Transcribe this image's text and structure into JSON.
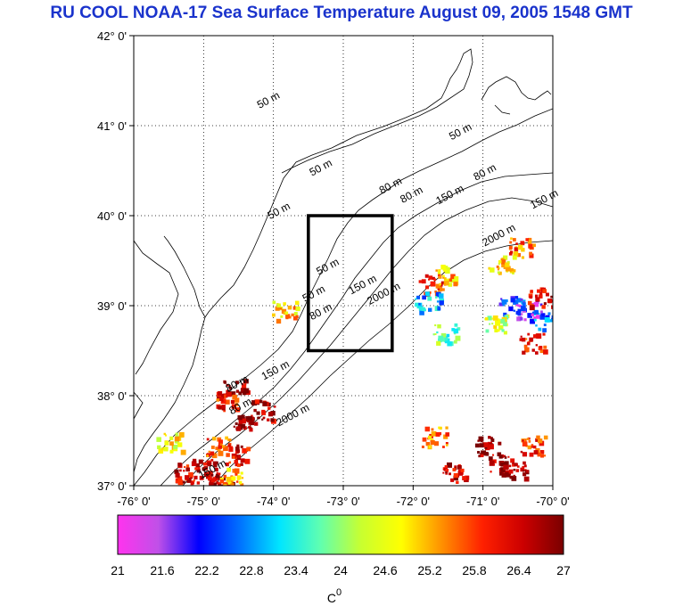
{
  "title": "RU COOL  NOAA-17 Sea Surface Temperature August 09, 2005 1548 GMT",
  "map": {
    "lon_ticks": [
      "-76° 0'",
      "-75° 0'",
      "-74° 0'",
      "-73° 0'",
      "-72° 0'",
      "-71° 0'",
      "-70° 0'"
    ],
    "lat_ticks": [
      "42° 0'",
      "41° 0'",
      "40° 0'",
      "39° 0'",
      "38° 0'",
      "37° 0'"
    ],
    "lon_range": [
      -76,
      -70
    ],
    "lat_range": [
      37,
      42
    ],
    "study_box": {
      "lon": [
        -73.5,
        -72.3
      ],
      "lat": [
        38.5,
        40.0
      ]
    },
    "contour_labels": [
      {
        "text": "50 m",
        "lon": -74.05,
        "lat": 41.25
      },
      {
        "text": "50 m",
        "lon": -73.3,
        "lat": 40.5
      },
      {
        "text": "50 m",
        "lon": -71.3,
        "lat": 40.9
      },
      {
        "text": "50 m",
        "lon": -73.9,
        "lat": 40.02
      },
      {
        "text": "80 m",
        "lon": -72.3,
        "lat": 40.3
      },
      {
        "text": "80 m",
        "lon": -72.0,
        "lat": 40.2
      },
      {
        "text": "80 m",
        "lon": -70.95,
        "lat": 40.45
      },
      {
        "text": "150 m",
        "lon": -71.45,
        "lat": 40.2
      },
      {
        "text": "150 m",
        "lon": -70.1,
        "lat": 40.15
      },
      {
        "text": "2000 m",
        "lon": -70.75,
        "lat": 39.75
      },
      {
        "text": "2000 m",
        "lon": -72.4,
        "lat": 39.1
      },
      {
        "text": "150 m",
        "lon": -72.7,
        "lat": 39.2
      },
      {
        "text": "80 m",
        "lon": -73.3,
        "lat": 38.9
      },
      {
        "text": "50 m",
        "lon": -73.4,
        "lat": 39.1
      },
      {
        "text": "50 m",
        "lon": -73.2,
        "lat": 39.4
      },
      {
        "text": "150 m",
        "lon": -73.95,
        "lat": 38.25
      },
      {
        "text": "80 m",
        "lon": -74.5,
        "lat": 38.1
      },
      {
        "text": "80 m",
        "lon": -74.45,
        "lat": 37.85
      },
      {
        "text": "2000 m",
        "lon": -73.7,
        "lat": 37.75
      },
      {
        "text": "150 m",
        "lon": -74.85,
        "lat": 37.15
      }
    ]
  },
  "colorbar": {
    "tick_labels": [
      "21",
      "21.6",
      "22.2",
      "22.8",
      "23.4",
      "24",
      "24.6",
      "25.2",
      "25.8",
      "26.4",
      "27"
    ],
    "range": [
      21,
      27
    ],
    "unit_label": "C",
    "unit_sup": "0",
    "stops": [
      "#ff33ee",
      "#c050e8",
      "#0000ff",
      "#0070ff",
      "#00e6ff",
      "#60ffb0",
      "#c8ff30",
      "#ffff00",
      "#ff9000",
      "#ff2000",
      "#cc0000",
      "#7a0000"
    ]
  },
  "sst_patches": [
    {
      "lon": -70.95,
      "lat": 37.45,
      "temp": 26.9
    },
    {
      "lon": -70.75,
      "lat": 37.25,
      "temp": 26.7
    },
    {
      "lon": -70.55,
      "lat": 37.2,
      "temp": 26.8
    },
    {
      "lon": -71.4,
      "lat": 37.15,
      "temp": 26.5
    },
    {
      "lon": -71.7,
      "lat": 37.55,
      "temp": 25.5
    },
    {
      "lon": -70.3,
      "lat": 37.45,
      "temp": 25.9
    },
    {
      "lon": -71.75,
      "lat": 39.25,
      "temp": 26.0
    },
    {
      "lon": -71.55,
      "lat": 39.35,
      "temp": 25.1
    },
    {
      "lon": -71.8,
      "lat": 39.05,
      "temp": 23.0
    },
    {
      "lon": -70.6,
      "lat": 39.0,
      "temp": 22.3
    },
    {
      "lon": -70.35,
      "lat": 38.95,
      "temp": 21.8
    },
    {
      "lon": -70.1,
      "lat": 38.85,
      "temp": 22.7
    },
    {
      "lon": -70.2,
      "lat": 39.1,
      "temp": 26.3
    },
    {
      "lon": -70.85,
      "lat": 38.8,
      "temp": 24.4
    },
    {
      "lon": -71.55,
      "lat": 38.7,
      "temp": 23.8
    },
    {
      "lon": -70.3,
      "lat": 38.6,
      "temp": 26.0
    },
    {
      "lon": -70.45,
      "lat": 39.65,
      "temp": 25.6
    },
    {
      "lon": -70.75,
      "lat": 39.45,
      "temp": 24.9
    },
    {
      "lon": -74.15,
      "lat": 37.85,
      "temp": 26.6
    },
    {
      "lon": -74.4,
      "lat": 37.75,
      "temp": 26.9
    },
    {
      "lon": -74.55,
      "lat": 37.35,
      "temp": 26.2
    },
    {
      "lon": -75.0,
      "lat": 37.2,
      "temp": 26.6
    },
    {
      "lon": -75.25,
      "lat": 37.15,
      "temp": 26.3
    },
    {
      "lon": -74.75,
      "lat": 37.05,
      "temp": 26.8
    },
    {
      "lon": -74.6,
      "lat": 37.1,
      "temp": 25.2
    },
    {
      "lon": -75.5,
      "lat": 37.5,
      "temp": 24.7
    },
    {
      "lon": -74.8,
      "lat": 37.45,
      "temp": 25.8
    },
    {
      "lon": -73.85,
      "lat": 38.95,
      "temp": 25.0
    },
    {
      "lon": -74.55,
      "lat": 38.1,
      "temp": 26.7
    },
    {
      "lon": -74.65,
      "lat": 37.95,
      "temp": 26.0
    }
  ]
}
